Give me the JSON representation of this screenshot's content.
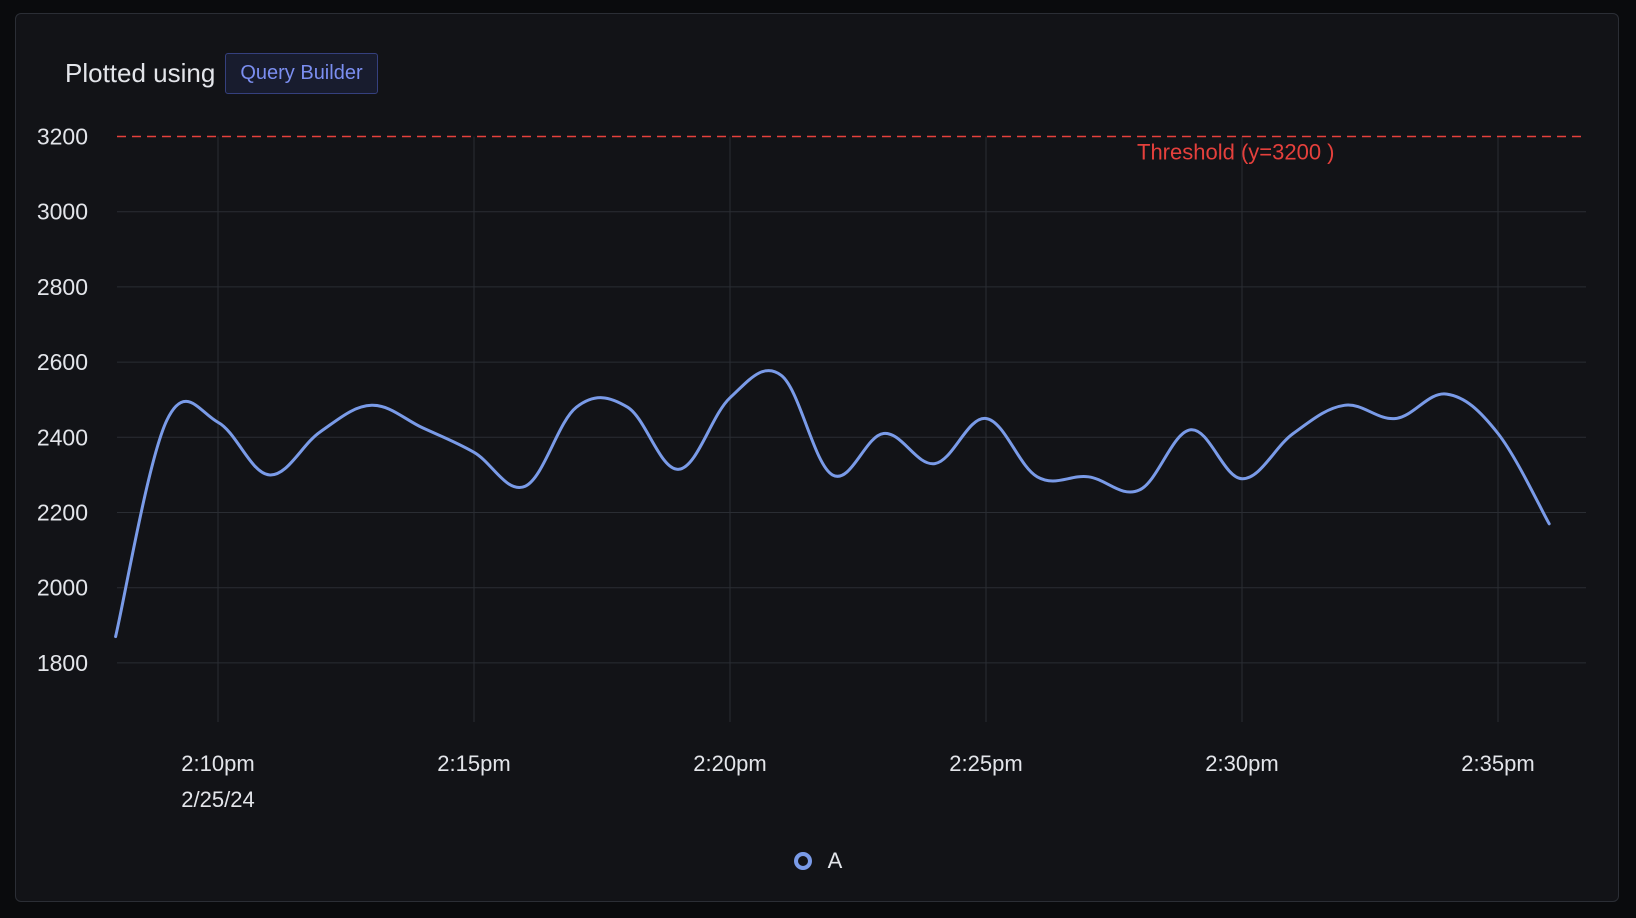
{
  "header": {
    "label": "Plotted using",
    "badge": "Query Builder"
  },
  "colors": {
    "background": "#121317",
    "series": "#7a9be8",
    "threshold": "#e5403c",
    "grid": "#2a2d33",
    "text": "#e3e5ea"
  },
  "chart_data": {
    "type": "line",
    "ylim": [
      1650,
      3200
    ],
    "xlim": [
      "14:08",
      "14:37"
    ],
    "grid": true,
    "legend_placement": "bottom-center",
    "y_ticks": [
      1800,
      2000,
      2200,
      2400,
      2600,
      2800,
      3000,
      3200
    ],
    "x_ticks": [
      {
        "time": "14:10",
        "label": "2:10pm",
        "sublabel": "2/25/24"
      },
      {
        "time": "14:15",
        "label": "2:15pm",
        "sublabel": ""
      },
      {
        "time": "14:20",
        "label": "2:20pm",
        "sublabel": ""
      },
      {
        "time": "14:25",
        "label": "2:25pm",
        "sublabel": ""
      },
      {
        "time": "14:30",
        "label": "2:30pm",
        "sublabel": ""
      },
      {
        "time": "14:35",
        "label": "2:35pm",
        "sublabel": ""
      }
    ],
    "threshold": {
      "value": 3200,
      "label": "Threshold (y=3200 )"
    },
    "series": [
      {
        "name": "A",
        "points": [
          {
            "t": "14:08",
            "v": 1870
          },
          {
            "t": "14:09",
            "v": 2445
          },
          {
            "t": "14:10",
            "v": 2440
          },
          {
            "t": "14:11",
            "v": 2300
          },
          {
            "t": "14:12",
            "v": 2415
          },
          {
            "t": "14:13",
            "v": 2485
          },
          {
            "t": "14:14",
            "v": 2425
          },
          {
            "t": "14:15",
            "v": 2360
          },
          {
            "t": "14:16",
            "v": 2270
          },
          {
            "t": "14:17",
            "v": 2480
          },
          {
            "t": "14:18",
            "v": 2480
          },
          {
            "t": "14:19",
            "v": 2315
          },
          {
            "t": "14:20",
            "v": 2505
          },
          {
            "t": "14:21",
            "v": 2565
          },
          {
            "t": "14:22",
            "v": 2300
          },
          {
            "t": "14:23",
            "v": 2410
          },
          {
            "t": "14:24",
            "v": 2330
          },
          {
            "t": "14:25",
            "v": 2450
          },
          {
            "t": "14:26",
            "v": 2295
          },
          {
            "t": "14:27",
            "v": 2295
          },
          {
            "t": "14:28",
            "v": 2260
          },
          {
            "t": "14:29",
            "v": 2420
          },
          {
            "t": "14:30",
            "v": 2290
          },
          {
            "t": "14:31",
            "v": 2410
          },
          {
            "t": "14:32",
            "v": 2485
          },
          {
            "t": "14:33",
            "v": 2450
          },
          {
            "t": "14:34",
            "v": 2515
          },
          {
            "t": "14:35",
            "v": 2410
          },
          {
            "t": "14:36",
            "v": 2170
          }
        ]
      }
    ]
  }
}
